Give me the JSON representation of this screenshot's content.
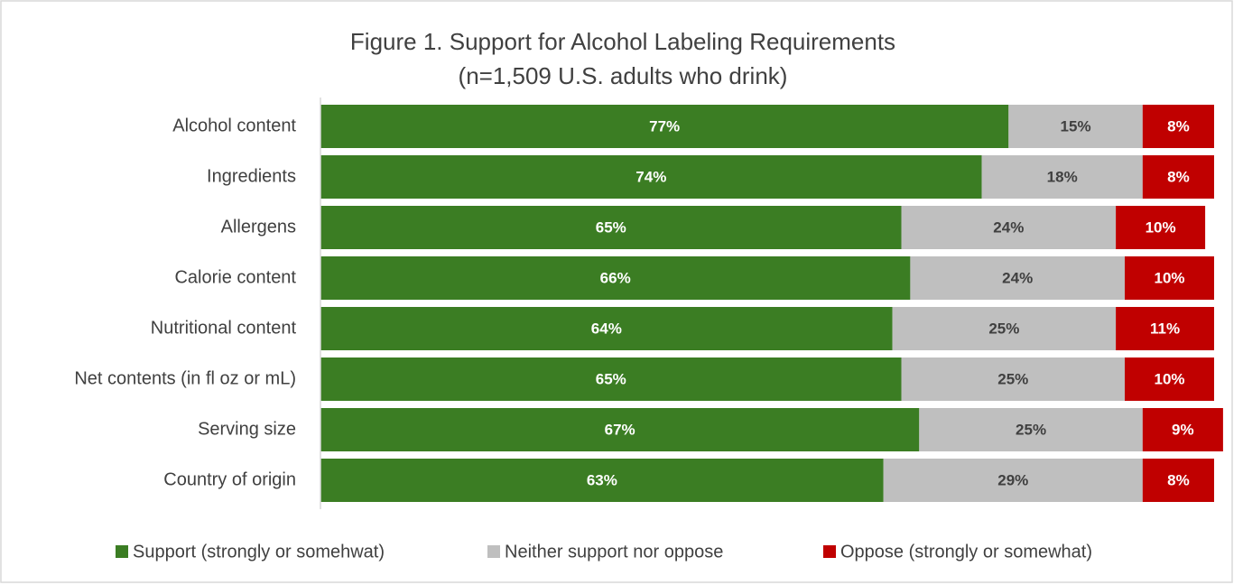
{
  "chart_data": {
    "type": "stacked_bar_horizontal",
    "title": "Figure 1. Support for Alcohol Labeling Requirements",
    "subtitle": "(n=1,509 U.S. adults who drink)",
    "categories": [
      "Alcohol content",
      "Ingredients",
      "Allergens",
      "Calorie content",
      "Nutritional content",
      "Net contents (in fl oz or mL)",
      "Serving size",
      "Country of origin"
    ],
    "series": [
      {
        "name": "Support (strongly or somehwat)",
        "color": "#3b7d23",
        "values": [
          77,
          74,
          65,
          66,
          64,
          65,
          67,
          63
        ],
        "value_labels": [
          "77%",
          "74%",
          "65%",
          "66%",
          "64%",
          "65%",
          "67%",
          "63%"
        ]
      },
      {
        "name": "Neither support nor oppose",
        "color": "#bfbfbf",
        "values": [
          15,
          18,
          24,
          24,
          25,
          25,
          25,
          29
        ],
        "value_labels": [
          "15%",
          "18%",
          "24%",
          "24%",
          "25%",
          "25%",
          "25%",
          "29%"
        ]
      },
      {
        "name": "Oppose (strongly or somewhat)",
        "color": "#c00000",
        "values": [
          8,
          8,
          10,
          10,
          11,
          10,
          9,
          8
        ],
        "value_labels": [
          "8%",
          "8%",
          "10%",
          "10%",
          "11%",
          "10%",
          "9%",
          "8%"
        ]
      }
    ],
    "xlim": [
      0,
      100
    ],
    "legend": "bottom"
  }
}
